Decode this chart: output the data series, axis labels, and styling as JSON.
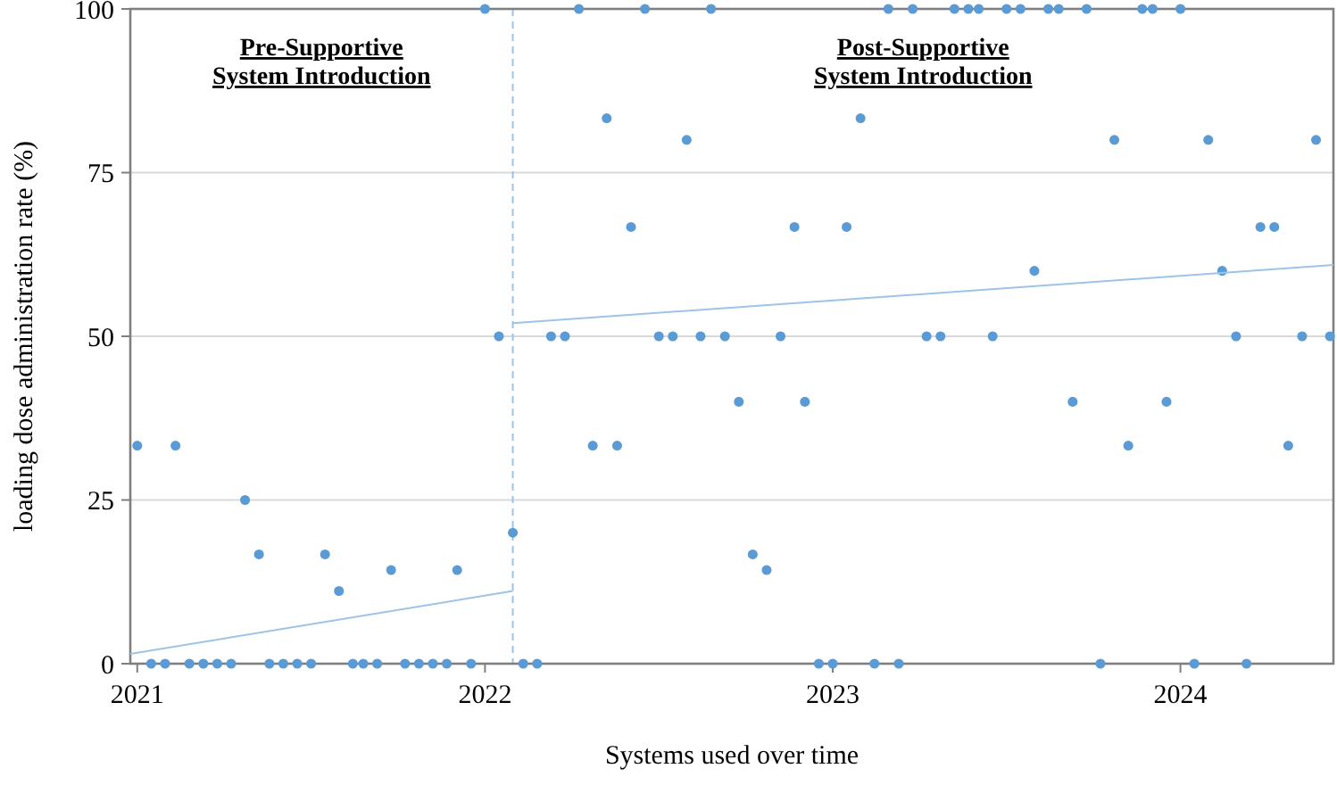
{
  "chart_data": {
    "type": "scatter",
    "xlabel": "Systems used over time",
    "ylabel": "loading dose administration rate (%)",
    "annotations": [
      "Pre-Supportive\nSystem Introduction",
      "Post-Supportive\nSystem Introduction"
    ],
    "xlim": [
      2020.98,
      2024.44
    ],
    "xticks": [
      2021,
      2022,
      2023,
      2024
    ],
    "ylim": [
      0,
      100
    ],
    "yticks": [
      0,
      25,
      50,
      75,
      100
    ],
    "grid": "y",
    "ref_lines": [
      {
        "axis": "x",
        "value": 2022.08,
        "label": null,
        "color": "#9dc3e6",
        "line_style": "dashed"
      }
    ],
    "series": [
      {
        "marker": "circle",
        "color": "#5b9bd5",
        "x": [
          2021.0,
          2021.04,
          2021.08,
          2021.11,
          2021.15,
          2021.19,
          2021.23,
          2021.27,
          2021.31,
          2021.35,
          2021.38,
          2021.42,
          2021.46,
          2021.5,
          2021.54,
          2021.58,
          2021.62,
          2021.65,
          2021.69,
          2021.73,
          2021.77,
          2021.81,
          2021.85,
          2021.89,
          2021.92,
          2021.96,
          2022.0,
          2022.04,
          2022.08,
          2022.11,
          2022.15,
          2022.19,
          2022.23,
          2022.27,
          2022.31,
          2022.35,
          2022.38,
          2022.42,
          2022.46,
          2022.5,
          2022.54,
          2022.58,
          2022.62,
          2022.65,
          2022.69,
          2022.73,
          2022.77,
          2022.81,
          2022.85,
          2022.89,
          2022.92,
          2022.96,
          2023.0,
          2023.04,
          2023.08,
          2023.12,
          2023.16,
          2023.19,
          2023.23,
          2023.27,
          2023.31,
          2023.35,
          2023.39,
          2023.42,
          2023.46,
          2023.5,
          2023.54,
          2023.58,
          2023.62,
          2023.65,
          2023.69,
          2023.73,
          2023.77,
          2023.81,
          2023.85,
          2023.89,
          2023.92,
          2023.96,
          2024.0,
          2024.04,
          2024.08,
          2024.12,
          2024.16,
          2024.19,
          2024.23,
          2024.27,
          2024.31,
          2024.35,
          2024.39,
          2024.43
        ],
        "values": [
          33.3,
          0,
          0,
          33.3,
          0,
          0,
          0,
          0,
          25,
          16.7,
          0,
          0,
          0,
          0,
          16.7,
          11.1,
          0,
          0,
          0,
          14.3,
          0,
          0,
          0,
          0,
          14.3,
          0,
          100,
          50,
          20,
          0,
          0,
          50,
          50,
          100,
          33.3,
          83.3,
          33.3,
          66.7,
          100,
          50,
          50,
          80,
          50,
          100,
          50,
          40,
          16.7,
          14.3,
          50,
          66.7,
          40,
          0,
          0,
          66.7,
          83.3,
          0,
          100,
          0,
          100,
          50,
          50,
          100,
          100,
          100,
          50,
          100,
          100,
          60,
          100,
          100,
          40,
          100,
          0,
          80,
          33.3,
          100,
          100,
          40,
          100,
          0,
          80,
          60,
          50,
          0,
          66.7,
          66.7,
          33.3,
          50,
          80,
          50
        ]
      },
      {
        "type": "line",
        "color": "#9dc3e6",
        "x": [
          2020.98,
          2022.08
        ],
        "values": [
          1.5,
          11.1
        ]
      },
      {
        "type": "line",
        "color": "#9dc3e6",
        "x": [
          2022.08,
          2024.44
        ],
        "values": [
          52.0,
          60.9
        ]
      }
    ]
  }
}
